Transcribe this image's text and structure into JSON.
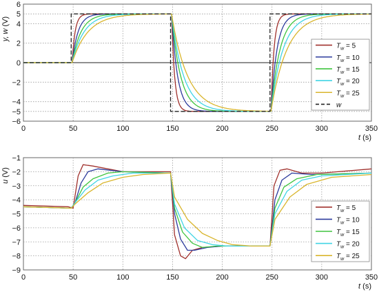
{
  "chart_data": [
    {
      "type": "line",
      "ylabel_main": "y, w",
      "ylabel_unit": " (V)",
      "xlabel": "t (s)",
      "xlim": [
        0,
        350
      ],
      "ylim": [
        -6,
        6
      ],
      "xticks": [
        0,
        50,
        100,
        150,
        200,
        250,
        300,
        350
      ],
      "yticks": [
        -6,
        -5,
        -4,
        -2,
        0,
        2,
        4,
        5,
        6
      ],
      "grid": true,
      "legend_position": "right",
      "series": [
        {
          "name": "Tw = 5",
          "sub": "w",
          "value": "5",
          "color": "#a0302c",
          "tau": 3,
          "x": [
            0,
            50,
            150,
            250,
            350
          ],
          "y": [
            0,
            0,
            5,
            -5,
            5
          ]
        },
        {
          "name": "Tw = 10",
          "sub": "w",
          "value": "10",
          "color": "#2b3a9c",
          "tau": 6,
          "x": [
            0,
            50,
            150,
            250,
            350
          ],
          "y": [
            0,
            0,
            5,
            -5,
            5
          ]
        },
        {
          "name": "Tw = 15",
          "sub": "w",
          "value": "15",
          "color": "#3ec43e",
          "tau": 9,
          "x": [
            0,
            50,
            150,
            250,
            350
          ],
          "y": [
            0,
            0,
            5,
            -5,
            5
          ]
        },
        {
          "name": "Tw = 20",
          "sub": "w",
          "value": "20",
          "color": "#3fd4e4",
          "tau": 12,
          "x": [
            0,
            50,
            150,
            250,
            350
          ],
          "y": [
            0,
            0,
            5,
            -5,
            5
          ]
        },
        {
          "name": "Tw = 25",
          "sub": "w",
          "value": "25",
          "color": "#d9b52c",
          "tau": 16,
          "x": [
            0,
            50,
            150,
            250,
            350
          ],
          "y": [
            0,
            0,
            5,
            -5,
            5
          ]
        },
        {
          "name": "w",
          "color": "#222222",
          "dashed": true,
          "x": [
            0,
            48,
            48,
            148,
            148,
            248,
            248,
            350
          ],
          "y": [
            0,
            0,
            5,
            5,
            -5,
            -5,
            5,
            5
          ]
        }
      ]
    },
    {
      "type": "line",
      "ylabel_main": "u",
      "ylabel_unit": " (V)",
      "xlabel": "t (s)",
      "xlim": [
        0,
        350
      ],
      "ylim": [
        -9,
        -1
      ],
      "xticks": [
        0,
        50,
        100,
        150,
        200,
        250,
        300,
        350
      ],
      "yticks": [
        -9,
        -8,
        -7,
        -6,
        -5,
        -4,
        -3,
        -2,
        -1
      ],
      "grid": true,
      "legend_position": "right",
      "series": [
        {
          "name": "Tw = 5",
          "sub": "w",
          "value": "5",
          "color": "#a0302c",
          "x": [
            0,
            45,
            50,
            55,
            60,
            70,
            100,
            148,
            152,
            158,
            163,
            170,
            180,
            200,
            248,
            252,
            258,
            265,
            280,
            300,
            350
          ],
          "y": [
            -4.4,
            -4.5,
            -4.6,
            -2.3,
            -1.5,
            -1.6,
            -2.0,
            -2.0,
            -6.5,
            -8.0,
            -8.2,
            -7.6,
            -7.4,
            -7.3,
            -7.3,
            -3.0,
            -1.9,
            -1.8,
            -2.1,
            -2.1,
            -1.8
          ]
        },
        {
          "name": "Tw = 10",
          "sub": "w",
          "value": "10",
          "color": "#2b3a9c",
          "x": [
            0,
            48,
            52,
            58,
            65,
            75,
            100,
            148,
            152,
            158,
            165,
            172,
            185,
            200,
            248,
            253,
            260,
            270,
            290,
            350
          ],
          "y": [
            -4.5,
            -4.6,
            -4.2,
            -2.8,
            -2.0,
            -1.8,
            -2.0,
            -2.1,
            -5.0,
            -6.8,
            -7.6,
            -7.6,
            -7.4,
            -7.3,
            -7.3,
            -4.0,
            -2.6,
            -2.1,
            -2.2,
            -2.1
          ]
        },
        {
          "name": "Tw = 15",
          "sub": "w",
          "value": "15",
          "color": "#3ec43e",
          "x": [
            0,
            48,
            52,
            60,
            70,
            85,
            100,
            148,
            152,
            160,
            170,
            180,
            195,
            210,
            248,
            253,
            262,
            275,
            295,
            350
          ],
          "y": [
            -4.5,
            -4.6,
            -4.2,
            -3.1,
            -2.5,
            -2.1,
            -2.0,
            -2.1,
            -4.6,
            -6.3,
            -7.1,
            -7.4,
            -7.3,
            -7.3,
            -7.3,
            -4.6,
            -3.1,
            -2.5,
            -2.2,
            -2.1
          ]
        },
        {
          "name": "Tw = 20",
          "sub": "w",
          "value": "20",
          "color": "#3fd4e4",
          "x": [
            0,
            48,
            52,
            62,
            75,
            90,
            110,
            148,
            152,
            162,
            175,
            190,
            205,
            220,
            248,
            253,
            265,
            280,
            300,
            350
          ],
          "y": [
            -4.5,
            -4.6,
            -4.2,
            -3.3,
            -2.6,
            -2.3,
            -2.1,
            -2.1,
            -4.3,
            -6.0,
            -6.9,
            -7.2,
            -7.3,
            -7.3,
            -7.3,
            -5.0,
            -3.4,
            -2.6,
            -2.3,
            -2.1
          ]
        },
        {
          "name": "Tw = 25",
          "sub": "w",
          "value": "25",
          "color": "#d9b52c",
          "x": [
            0,
            48,
            52,
            65,
            80,
            100,
            120,
            148,
            152,
            165,
            180,
            195,
            210,
            230,
            248,
            253,
            268,
            285,
            310,
            350
          ],
          "y": [
            -4.5,
            -4.6,
            -4.3,
            -3.5,
            -2.8,
            -2.4,
            -2.2,
            -2.1,
            -3.8,
            -5.4,
            -6.4,
            -6.9,
            -7.2,
            -7.3,
            -7.3,
            -5.4,
            -3.8,
            -2.9,
            -2.4,
            -2.2
          ]
        }
      ]
    }
  ]
}
